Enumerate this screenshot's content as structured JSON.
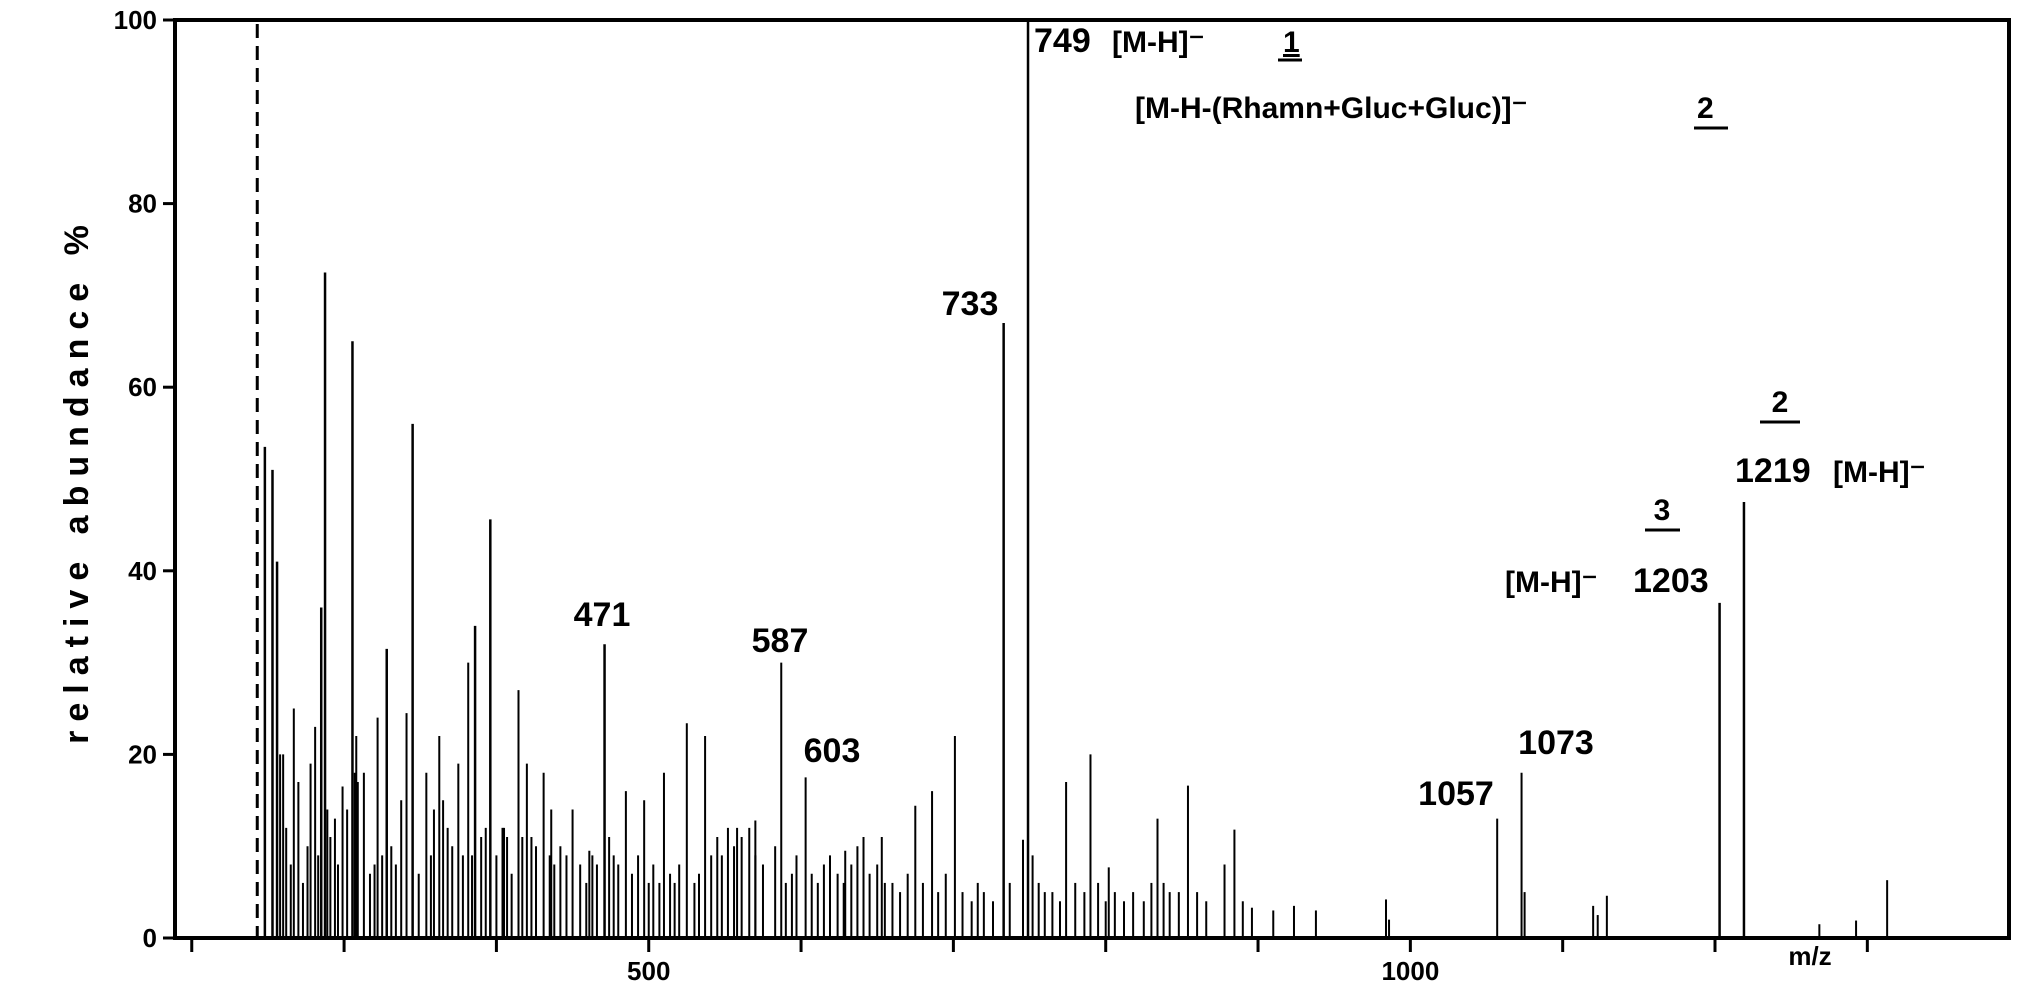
{
  "chart_data": {
    "type": "bar",
    "title": "",
    "xlabel": "m/z",
    "ylabel": "relative abundance %",
    "xlim": [
      189,
      1393
    ],
    "ylim": [
      0,
      100
    ],
    "x_ticks": [
      200,
      300,
      400,
      500,
      600,
      700,
      800,
      900,
      1000,
      1100,
      1200,
      1300
    ],
    "x_tick_labels": [
      {
        "value": 500,
        "label": "500"
      },
      {
        "value": 1000,
        "label": "1000"
      }
    ],
    "y_ticks": [
      {
        "value": 0,
        "label": "0"
      },
      {
        "value": 20,
        "label": "20"
      },
      {
        "value": 40,
        "label": "40"
      },
      {
        "value": 60,
        "label": "60"
      },
      {
        "value": 80,
        "label": "80"
      },
      {
        "value": 100,
        "label": "100"
      }
    ],
    "grid": false,
    "dashed_marker_mz": 243,
    "peaks": [
      [
        248,
        53.5
      ],
      [
        253,
        51
      ],
      [
        256,
        41
      ],
      [
        258,
        20
      ],
      [
        260,
        20
      ],
      [
        262,
        12
      ],
      [
        265,
        8
      ],
      [
        267,
        25
      ],
      [
        270,
        17
      ],
      [
        273,
        6
      ],
      [
        276,
        10
      ],
      [
        278,
        19
      ],
      [
        281,
        23
      ],
      [
        283,
        9
      ],
      [
        285,
        36
      ],
      [
        287.5,
        72.5
      ],
      [
        289,
        14
      ],
      [
        291,
        11
      ],
      [
        294,
        13
      ],
      [
        296,
        8
      ],
      [
        299,
        16.5
      ],
      [
        302,
        14
      ],
      [
        305.5,
        65
      ],
      [
        307,
        18
      ],
      [
        308,
        22
      ],
      [
        309,
        17
      ],
      [
        313,
        18
      ],
      [
        317,
        7
      ],
      [
        320,
        8
      ],
      [
        322,
        24
      ],
      [
        325,
        9
      ],
      [
        328,
        31.5
      ],
      [
        331,
        10
      ],
      [
        334,
        8
      ],
      [
        337.5,
        15
      ],
      [
        341,
        24.5
      ],
      [
        345,
        56
      ],
      [
        349,
        7
      ],
      [
        354,
        18
      ],
      [
        357,
        9
      ],
      [
        359,
        14
      ],
      [
        362.5,
        22
      ],
      [
        365,
        15
      ],
      [
        368,
        12
      ],
      [
        371,
        10
      ],
      [
        375,
        19
      ],
      [
        378,
        9
      ],
      [
        381.5,
        30
      ],
      [
        384,
        9
      ],
      [
        386,
        34
      ],
      [
        390,
        11
      ],
      [
        393,
        12
      ],
      [
        396,
        45.6
      ],
      [
        400,
        9
      ],
      [
        404,
        12
      ],
      [
        405,
        12
      ],
      [
        407,
        11
      ],
      [
        410,
        7
      ],
      [
        414.5,
        27
      ],
      [
        417,
        11
      ],
      [
        420,
        19
      ],
      [
        423,
        11
      ],
      [
        426,
        10
      ],
      [
        431,
        18
      ],
      [
        435,
        9
      ],
      [
        436,
        14
      ],
      [
        438,
        8
      ],
      [
        442,
        10
      ],
      [
        446,
        9
      ],
      [
        450,
        14
      ],
      [
        455,
        8
      ],
      [
        459,
        6
      ],
      [
        461,
        9.5
      ],
      [
        463,
        9
      ],
      [
        466,
        8
      ],
      [
        471,
        32
      ],
      [
        474,
        11
      ],
      [
        477,
        9
      ],
      [
        480,
        8
      ],
      [
        485,
        16
      ],
      [
        489,
        7
      ],
      [
        493,
        9
      ],
      [
        497,
        15
      ],
      [
        500,
        6
      ],
      [
        503,
        8
      ],
      [
        507,
        6
      ],
      [
        510,
        18
      ],
      [
        514,
        7
      ],
      [
        517,
        6
      ],
      [
        520,
        8
      ],
      [
        525,
        23.4
      ],
      [
        530,
        6
      ],
      [
        533,
        7
      ],
      [
        537,
        22
      ],
      [
        541,
        9
      ],
      [
        545,
        11
      ],
      [
        548,
        9
      ],
      [
        552,
        12
      ],
      [
        556,
        10
      ],
      [
        558,
        12
      ],
      [
        561,
        11
      ],
      [
        566,
        12
      ],
      [
        570,
        9
      ],
      [
        570,
        12.8
      ],
      [
        575,
        8
      ],
      [
        583,
        10
      ],
      [
        587,
        30
      ],
      [
        590,
        6
      ],
      [
        594,
        7
      ],
      [
        597,
        9
      ],
      [
        603,
        17.5
      ],
      [
        607,
        7
      ],
      [
        611,
        6
      ],
      [
        615,
        8
      ],
      [
        619,
        9
      ],
      [
        624,
        7
      ],
      [
        628,
        6
      ],
      [
        629,
        9.5
      ],
      [
        633,
        8
      ],
      [
        637,
        10
      ],
      [
        641,
        11
      ],
      [
        645,
        7
      ],
      [
        650,
        8
      ],
      [
        653,
        11
      ],
      [
        655,
        6
      ],
      [
        660,
        6
      ],
      [
        665,
        5
      ],
      [
        670,
        7
      ],
      [
        675,
        14.4
      ],
      [
        680,
        6
      ],
      [
        686,
        16
      ],
      [
        690,
        5
      ],
      [
        695,
        7
      ],
      [
        701,
        22
      ],
      [
        706,
        5
      ],
      [
        712,
        4
      ],
      [
        716,
        6
      ],
      [
        720,
        5
      ],
      [
        726,
        4
      ],
      [
        733,
        67
      ],
      [
        737,
        6
      ],
      [
        745.7,
        10.7
      ],
      [
        749,
        100
      ],
      [
        752,
        9
      ],
      [
        756,
        6
      ],
      [
        760,
        5
      ],
      [
        765,
        5
      ],
      [
        770,
        4
      ],
      [
        774,
        17
      ],
      [
        780,
        6
      ],
      [
        786,
        5
      ],
      [
        790,
        20
      ],
      [
        795,
        6
      ],
      [
        800,
        4
      ],
      [
        802,
        7.7
      ],
      [
        806,
        5
      ],
      [
        812,
        4
      ],
      [
        818,
        5
      ],
      [
        825,
        4
      ],
      [
        830,
        6
      ],
      [
        834,
        13
      ],
      [
        838,
        6
      ],
      [
        842,
        5
      ],
      [
        848,
        5
      ],
      [
        854,
        16.6
      ],
      [
        860,
        5
      ],
      [
        866,
        4
      ],
      [
        878,
        8
      ],
      [
        884.5,
        11.8
      ],
      [
        890,
        4
      ],
      [
        896,
        3.3
      ],
      [
        910,
        3
      ],
      [
        923.6,
        3.5
      ],
      [
        938,
        3
      ],
      [
        984,
        4.2
      ],
      [
        986,
        2
      ],
      [
        1057,
        13
      ],
      [
        1073,
        18
      ],
      [
        1075,
        5
      ],
      [
        1120,
        3.5
      ],
      [
        1123,
        2.5
      ],
      [
        1129,
        4.6
      ],
      [
        1203,
        36.5
      ],
      [
        1219,
        47.5
      ],
      [
        1268.5,
        1.5
      ],
      [
        1292.6,
        1.9
      ],
      [
        1313,
        6.3
      ]
    ],
    "annotations": {
      "p471": "471",
      "p587": "587",
      "p603": "603",
      "p733": "733",
      "p749": "749",
      "p749_ion": "[M-H]⁻",
      "p749_compound": "1",
      "fragment_ion": "[M-H-(Rhamn+Gluc+Gluc)]⁻",
      "fragment_compound": "2",
      "p1057": "1057",
      "p1073": "1073",
      "p1203": "1203",
      "p1203_ion": "[M-H]⁻",
      "p1203_compound": "3",
      "p1219": "1219",
      "p1219_ion": "[M-H]⁻",
      "p1219_compound": "2"
    }
  }
}
